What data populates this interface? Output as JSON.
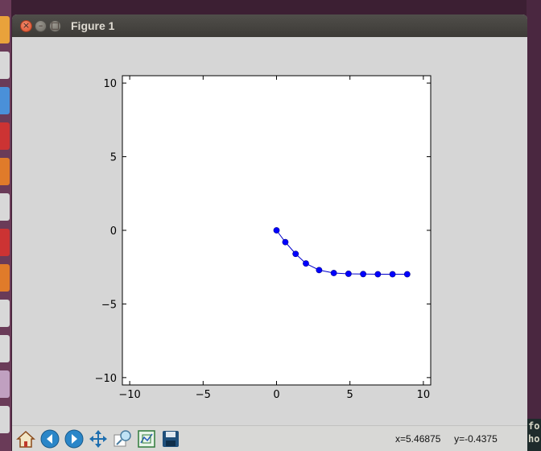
{
  "window": {
    "title": "Figure 1"
  },
  "toolbar": {
    "buttons": [
      {
        "name": "home-icon"
      },
      {
        "name": "back-icon"
      },
      {
        "name": "forward-icon"
      },
      {
        "name": "pan-icon"
      },
      {
        "name": "zoom-icon"
      },
      {
        "name": "configure-subplots-icon"
      },
      {
        "name": "save-icon"
      }
    ],
    "status_x": "x=5.46875",
    "status_y": "y=-0.4375"
  },
  "terminal": {
    "line1": "fo",
    "line2": "ho"
  },
  "colors": {
    "line": "#0000cc",
    "marker": "#0000ff",
    "axes_bg": "#ffffff",
    "figure_bg": "#d6d6d6"
  },
  "chart_data": {
    "type": "line",
    "title": "",
    "xlabel": "",
    "ylabel": "",
    "xlim": [
      -10.5,
      10.5
    ],
    "ylim": [
      -10.5,
      10.5
    ],
    "xticks": [
      -10,
      -5,
      0,
      5,
      10
    ],
    "yticks": [
      -10,
      -5,
      0,
      5,
      10
    ],
    "xtick_labels": [
      "−10",
      "−5",
      "0",
      "5",
      "10"
    ],
    "ytick_labels": [
      "−10",
      "−5",
      "0",
      "5",
      "10"
    ],
    "grid": false,
    "series": [
      {
        "x": [
          0,
          0.6,
          1.3,
          2.0,
          2.9,
          3.9,
          4.9,
          5.9,
          6.9,
          7.9,
          8.9
        ],
        "y": [
          0,
          -0.8,
          -1.6,
          -2.25,
          -2.7,
          -2.9,
          -2.95,
          -2.97,
          -2.98,
          -2.98,
          -2.98
        ],
        "marker": "circle"
      }
    ]
  }
}
